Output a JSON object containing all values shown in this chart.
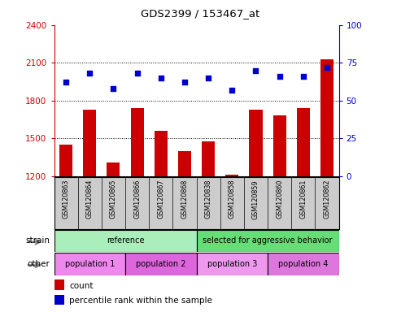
{
  "title": "GDS2399 / 153467_at",
  "samples": [
    "GSM120863",
    "GSM120864",
    "GSM120865",
    "GSM120866",
    "GSM120867",
    "GSM120868",
    "GSM120838",
    "GSM120858",
    "GSM120859",
    "GSM120860",
    "GSM120861",
    "GSM120862"
  ],
  "counts": [
    1450,
    1730,
    1310,
    1740,
    1560,
    1400,
    1480,
    1210,
    1730,
    1680,
    1740,
    2130
  ],
  "percentiles": [
    62,
    68,
    58,
    68,
    65,
    62,
    65,
    57,
    70,
    66,
    66,
    72
  ],
  "y_min": 1200,
  "y_max": 2400,
  "y_ticks": [
    1200,
    1500,
    1800,
    2100,
    2400
  ],
  "y2_ticks": [
    0,
    25,
    50,
    75,
    100
  ],
  "bar_color": "#cc0000",
  "dot_color": "#0000cc",
  "strain_groups": [
    {
      "label": "reference",
      "start": 0,
      "end": 6,
      "color": "#aaeebb"
    },
    {
      "label": "selected for aggressive behavior",
      "start": 6,
      "end": 12,
      "color": "#66dd77"
    }
  ],
  "other_groups": [
    {
      "label": "population 1",
      "start": 0,
      "end": 3,
      "color": "#ee88ee"
    },
    {
      "label": "population 2",
      "start": 3,
      "end": 6,
      "color": "#dd66dd"
    },
    {
      "label": "population 3",
      "start": 6,
      "end": 9,
      "color": "#ee99ee"
    },
    {
      "label": "population 4",
      "start": 9,
      "end": 12,
      "color": "#dd77dd"
    }
  ],
  "legend_count_color": "#cc0000",
  "legend_dot_color": "#0000cc",
  "tick_label_color_left": "#cc0000",
  "tick_label_color_right": "#0000cc",
  "cell_bg_color": "#cccccc",
  "strain_label": "strain",
  "other_label": "other",
  "legend_count_text": "count",
  "legend_pct_text": "percentile rank within the sample"
}
